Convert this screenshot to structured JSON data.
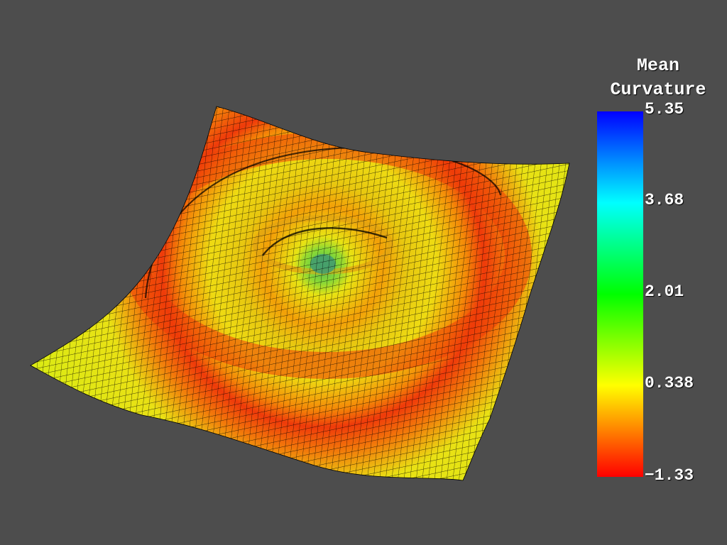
{
  "scalar_bar": {
    "title_line1": "Mean",
    "title_line2": "Curvature",
    "range": [
      -1.33,
      5.35
    ],
    "ticks": [
      "5.35",
      "3.68",
      "2.01",
      "0.338",
      "−1.33"
    ],
    "colormap": "jet",
    "colors": {
      "max": "#0000ff",
      "upper": "#00ffff",
      "middle": "#00ff00",
      "lower": "#ffff00",
      "min": "#ff0000"
    }
  },
  "background_color": "#4d4d4d",
  "mesh_edge_color": "#000000"
}
